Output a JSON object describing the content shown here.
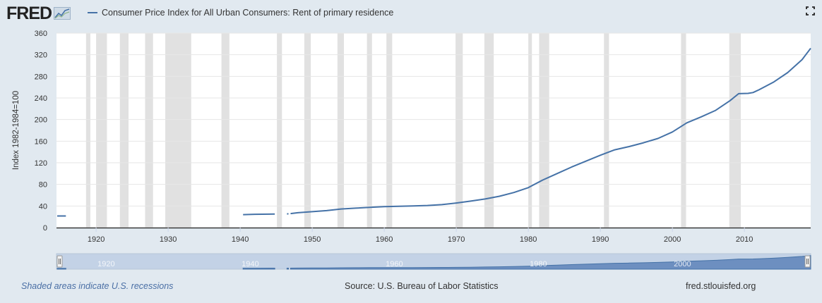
{
  "header": {
    "logo_text": "FRED",
    "legend_label": "Consumer Price Index for All Urban Consumers: Rent of primary residence",
    "series_color": "#4572a7"
  },
  "footer": {
    "recession_note": "Shaded areas indicate U.S. recessions",
    "source": "Source: U.S. Bureau of Labor Statistics",
    "site": "fred.stlouisfed.org"
  },
  "chart_data": {
    "type": "line",
    "title": "",
    "xlabel": "",
    "ylabel": "Index 1982-1984=100",
    "xlim": [
      1914.5,
      2019.2
    ],
    "ylim": [
      0,
      360
    ],
    "yticks": [
      0,
      40,
      80,
      120,
      160,
      200,
      240,
      280,
      320,
      360
    ],
    "xticks": [
      1920,
      1930,
      1940,
      1950,
      1960,
      1970,
      1980,
      1990,
      2000,
      2010
    ],
    "grid": true,
    "legend_position": "top-left",
    "recessions": [
      [
        1918.6,
        1919.2
      ],
      [
        1920.0,
        1921.5
      ],
      [
        1923.3,
        1924.5
      ],
      [
        1926.8,
        1927.9
      ],
      [
        1929.6,
        1933.2
      ],
      [
        1937.4,
        1938.5
      ],
      [
        1945.1,
        1945.8
      ],
      [
        1948.9,
        1949.8
      ],
      [
        1953.5,
        1954.4
      ],
      [
        1957.6,
        1958.3
      ],
      [
        1960.3,
        1961.1
      ],
      [
        1969.9,
        1970.9
      ],
      [
        1973.9,
        1975.2
      ],
      [
        1980.0,
        1980.5
      ],
      [
        1981.5,
        1982.9
      ],
      [
        1990.5,
        1991.2
      ],
      [
        2001.2,
        2001.9
      ],
      [
        2007.9,
        2009.5
      ]
    ],
    "series": [
      {
        "name": "Consumer Price Index for All Urban Consumers: Rent of primary residence",
        "segments": [
          [
            [
              1914.6,
              21.5
            ],
            [
              1915.8,
              21.5
            ]
          ],
          [
            [
              1940.4,
              24.0
            ],
            [
              1942.0,
              24.6
            ],
            [
              1944.8,
              25.0
            ]
          ],
          [
            [
              1946.5,
              25.3
            ],
            [
              1946.7,
              25.5
            ]
          ],
          [
            [
              1947.0,
              26.0
            ],
            [
              1948.0,
              27.5
            ],
            [
              1950.0,
              29.5
            ],
            [
              1952.0,
              31.5
            ],
            [
              1954.0,
              34.5
            ],
            [
              1956.0,
              36.0
            ],
            [
              1958.0,
              37.5
            ],
            [
              1960.0,
              38.8
            ],
            [
              1962.0,
              39.5
            ],
            [
              1964.0,
              40.2
            ],
            [
              1966.0,
              41.0
            ],
            [
              1968.0,
              42.5
            ],
            [
              1970.0,
              45.5
            ],
            [
              1972.0,
              49.0
            ],
            [
              1974.0,
              53.0
            ],
            [
              1976.0,
              58.0
            ],
            [
              1978.0,
              65.0
            ],
            [
              1980.0,
              74.0
            ],
            [
              1982.0,
              88.0
            ],
            [
              1984.0,
              100.0
            ],
            [
              1986.0,
              112.0
            ],
            [
              1988.0,
              123.0
            ],
            [
              1990.0,
              134.0
            ],
            [
              1992.0,
              144.0
            ],
            [
              1994.0,
              150.0
            ],
            [
              1996.0,
              157.0
            ],
            [
              1998.0,
              165.0
            ],
            [
              2000.0,
              177.0
            ],
            [
              2002.0,
              194.0
            ],
            [
              2004.0,
              205.0
            ],
            [
              2006.0,
              217.0
            ],
            [
              2008.0,
              235.0
            ],
            [
              2009.2,
              248.0
            ],
            [
              2010.5,
              248.5
            ],
            [
              2011.2,
              250.0
            ],
            [
              2012.0,
              255.0
            ],
            [
              2014.0,
              269.0
            ],
            [
              2016.0,
              287.0
            ],
            [
              2018.0,
              311.0
            ],
            [
              2019.2,
              332.0
            ]
          ]
        ]
      }
    ],
    "navigator": {
      "tick_labels": [
        "1920",
        "1940",
        "1960",
        "1980",
        "2000"
      ],
      "tick_years": [
        1920,
        1940,
        1960,
        1980,
        2000
      ]
    }
  }
}
